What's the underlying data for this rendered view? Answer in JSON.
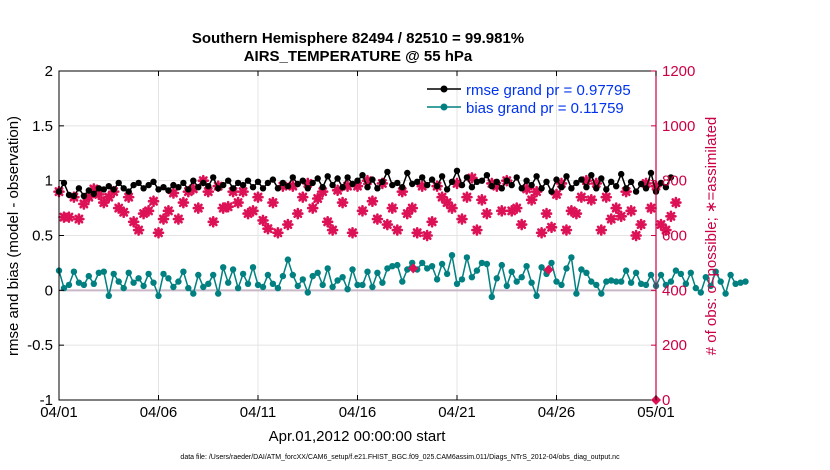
{
  "chart_data": {
    "type": "line",
    "title": "Southern Hemisphere 82494 / 82510 = 99.981%",
    "subtitle": "AIRS_TEMPERATURE @ 55 hPa",
    "xlabel": "Apr.01,2012 00:00:00 start",
    "ylabel_left": "rmse and bias (model - observation)",
    "ylabel_right": "# of obs: o=possible; ∗=assimilated",
    "footnote": "data file: /Users/raeder/DAI/ATM_forcXX/CAM6_setup/f.e21.FHIST_BGC.f09_025.CAM6assim.011/Diags_NTrS_2012-04/obs_diag_output.nc",
    "x_tick_labels": [
      "04/01",
      "04/06",
      "04/11",
      "04/16",
      "04/21",
      "04/26",
      "05/01"
    ],
    "x_range_days": [
      0,
      30
    ],
    "ylim_left": [
      -1,
      2
    ],
    "y_ticks_left": [
      -1,
      -0.5,
      0,
      0.5,
      1,
      1.5,
      2
    ],
    "y_tick_labels_left": [
      "-1",
      "-0.5",
      "0",
      "0.5",
      "1",
      "1.5",
      "2"
    ],
    "ylim_right": [
      0,
      1200
    ],
    "y_ticks_right": [
      0,
      200,
      400,
      600,
      800,
      1000,
      1200
    ],
    "y_tick_labels_right": [
      "0",
      "200",
      "400",
      "600",
      "800",
      "1000",
      "1200"
    ],
    "grid": true,
    "legend_position": "top-right",
    "colors": {
      "rmse": "#000000",
      "bias": "#008080",
      "obs": "#dd1155",
      "legend_text": "#0033ee",
      "right_axis": "#cc0044"
    },
    "series": [
      {
        "name": "rmse grand pr = 0.97795",
        "axis": "left",
        "color": "#000000",
        "x_start": 0.0,
        "x_step": 0.25,
        "values": [
          0.9,
          0.98,
          0.87,
          0.86,
          0.93,
          0.86,
          0.91,
          0.88,
          0.93,
          0.92,
          0.95,
          0.92,
          0.98,
          0.93,
          0.9,
          0.96,
          0.98,
          0.93,
          0.96,
          0.99,
          0.92,
          0.94,
          0.91,
          0.96,
          0.94,
          0.98,
          0.92,
          1.0,
          0.94,
          0.98,
          0.95,
          1.03,
          0.93,
          0.96,
          1.0,
          0.93,
          0.98,
          0.96,
          1.0,
          0.94,
          0.99,
          0.93,
          0.98,
          1.01,
          0.93,
          0.98,
          0.95,
          1.03,
          0.97,
          1.0,
          0.93,
          0.98,
          1.02,
          0.94,
          1.04,
          0.96,
          1.02,
          0.94,
          1.03,
          0.97,
          1.0,
          1.05,
          0.94,
          1.01,
          0.93,
          0.99,
          1.08,
          0.96,
          0.98,
          0.94,
          1.07,
          0.97,
          0.99,
          1.03,
          0.96,
          1.01,
          0.95,
          1.04,
          0.92,
          0.99,
          1.09,
          0.96,
          1.03,
          0.94,
          0.99,
          1.0,
          1.05,
          0.95,
          0.99,
          0.93,
          1.0,
          0.96,
          1.03,
          0.93,
          1.0,
          0.96,
          1.04,
          0.93,
          0.99,
          0.9,
          1.01,
          0.94,
          1.04,
          0.93,
          0.98,
          1.01,
          0.94,
          1.05,
          0.93,
          1.02,
          0.92,
          0.99,
          0.95,
          1.06,
          0.93,
          0.99,
          0.9,
          0.97,
          0.93,
          1.07,
          0.9,
          0.98,
          0.94,
          1.03
        ]
      },
      {
        "name": "bias grand pr = 0.11759",
        "axis": "left",
        "color": "#008080",
        "x_start": 0.0,
        "x_step": 0.25,
        "values": [
          0.18,
          0.02,
          0.05,
          0.17,
          0.07,
          0.05,
          0.13,
          0.06,
          0.16,
          0.17,
          -0.05,
          0.15,
          0.08,
          0.02,
          0.16,
          0.07,
          0.11,
          0.04,
          0.15,
          0.07,
          -0.05,
          0.15,
          0.11,
          0.03,
          0.08,
          0.17,
          0.02,
          -0.03,
          0.14,
          0.03,
          0.06,
          0.14,
          -0.03,
          0.21,
          0.07,
          0.19,
          0.02,
          0.15,
          0.06,
          0.21,
          0.05,
          0.03,
          0.14,
          0.06,
          0.02,
          0.13,
          0.28,
          0.14,
          0.04,
          0.1,
          -0.02,
          0.13,
          0.16,
          0.05,
          0.2,
          0.03,
          0.09,
          0.12,
          0.01,
          0.19,
          0.05,
          0.05,
          0.17,
          0.03,
          0.16,
          0.07,
          0.2,
          0.22,
          0.23,
          0.08,
          0.19,
          0.25,
          0.19,
          0.25,
          0.2,
          0.22,
          0.1,
          0.24,
          0.15,
          0.32,
          0.06,
          0.1,
          0.3,
          0.12,
          0.18,
          0.25,
          0.24,
          -0.06,
          0.11,
          0.23,
          0.04,
          0.17,
          0.08,
          0.12,
          0.22,
          0.07,
          -0.05,
          0.21,
          0.15,
          0.25,
          0.08,
          0.05,
          0.2,
          0.3,
          -0.03,
          0.19,
          0.16,
          0.08,
          0.05,
          -0.03,
          0.08,
          0.09,
          0.08,
          0.08,
          0.18,
          0.07,
          0.16,
          0.06,
          0.05,
          0.14,
          0.04,
          0.14,
          0.05,
          0.08,
          0.18,
          0.15,
          0.06,
          0.16,
          0.02,
          -0.02,
          0.12,
          0.04,
          0.17,
          0.08,
          -0.03,
          0.14,
          0.06,
          0.07,
          0.08
        ]
      },
      {
        "name": "# of obs assimilated",
        "axis": "right",
        "color": "#dd1155",
        "x_start": 0.0,
        "x_step": 0.25,
        "values": [
          760,
          667,
          667,
          740,
          660,
          715,
          740,
          770,
          750,
          720,
          740,
          760,
          700,
          685,
          740,
          650,
          620,
          680,
          690,
          725,
          610,
          660,
          690,
          755,
          660,
          720,
          760,
          770,
          700,
          800,
          760,
          650,
          780,
          700,
          705,
          760,
          720,
          760,
          680,
          690,
          740,
          655,
          625,
          720,
          610,
          780,
          640,
          780,
          680,
          740,
          790,
          700,
          735,
          760,
          650,
          620,
          765,
          720,
          780,
          610,
          780,
          690,
          800,
          725,
          660,
          790,
          640,
          700,
          620,
          760,
          680,
          700,
          610,
          780,
          600,
          650,
          780,
          740,
          720,
          700,
          790,
          660,
          740,
          810,
          620,
          730,
          680,
          790,
          780,
          690,
          800,
          690,
          700,
          640,
          770,
          730,
          760,
          610,
          680,
          630,
          750,
          790,
          620,
          690,
          680,
          740,
          800,
          730,
          790,
          620,
          740,
          660,
          700,
          670,
          760,
          690,
          600,
          640,
          790,
          700,
          780,
          640,
          620,
          670,
          720
        ]
      }
    ],
    "obs_possible_markers": [
      {
        "x": 17.8,
        "y": 480
      },
      {
        "x": 24.6,
        "y": 475
      },
      {
        "x": 30.0,
        "y": 0
      }
    ]
  }
}
